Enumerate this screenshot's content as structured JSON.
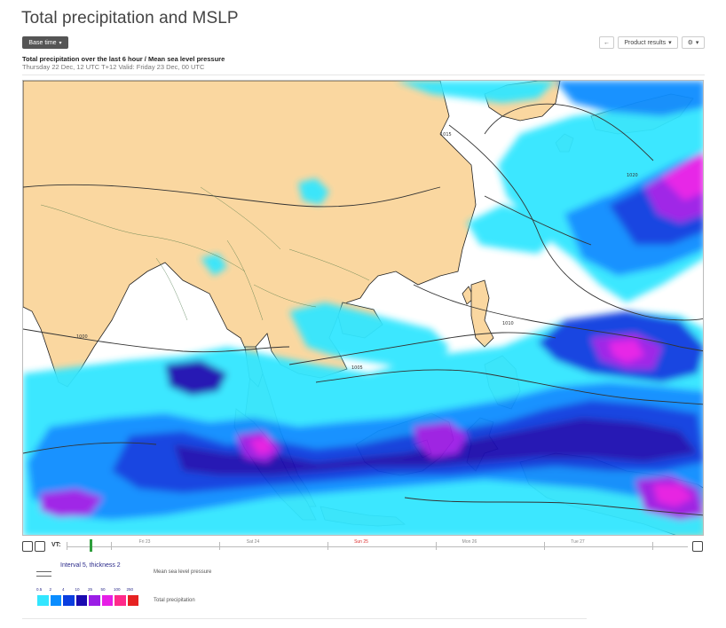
{
  "page": {
    "title": "Total precipitation and MSLP"
  },
  "toolbar": {
    "base_time_label": "Base time",
    "back_label": "←",
    "product_results_label": "Product results",
    "settings_label": "⚙"
  },
  "product": {
    "subtitle": "Total precipitation over the last 6 hour / Mean sea level pressure",
    "validity": "Thursday 22 Dec, 12 UTC T+12 Valid: Friday 23 Dec, 00 UTC"
  },
  "timeline": {
    "vt_label": "VT:",
    "days": [
      {
        "label": "Fri 23",
        "red": false
      },
      {
        "label": "Sat 24",
        "red": false
      },
      {
        "label": "Sun 25",
        "red": true
      },
      {
        "label": "Mon 26",
        "red": false
      },
      {
        "label": "Tue 27",
        "red": false
      }
    ]
  },
  "legend": {
    "mslp_interval": "Interval 5, thickness 2",
    "mslp_label": "Mean sea level pressure",
    "precip_label": "Total precipitation",
    "precip_levels": [
      "0.5",
      "2",
      "4",
      "10",
      "25",
      "50",
      "100",
      "250"
    ],
    "precip_colors": [
      "#33e6ff",
      "#0a8dff",
      "#0a3ee0",
      "#1a0ab0",
      "#9b1ee6",
      "#e61ee6",
      "#ff2a8a",
      "#e62222"
    ]
  },
  "colors": {
    "land": "#fad7a0",
    "sea": "#ffffff",
    "accent": "#555555",
    "cursor": "#2e9e3c"
  },
  "map_labels": {
    "isobars": [
      "1015",
      "1020",
      "1010",
      "1005",
      "1000"
    ]
  }
}
